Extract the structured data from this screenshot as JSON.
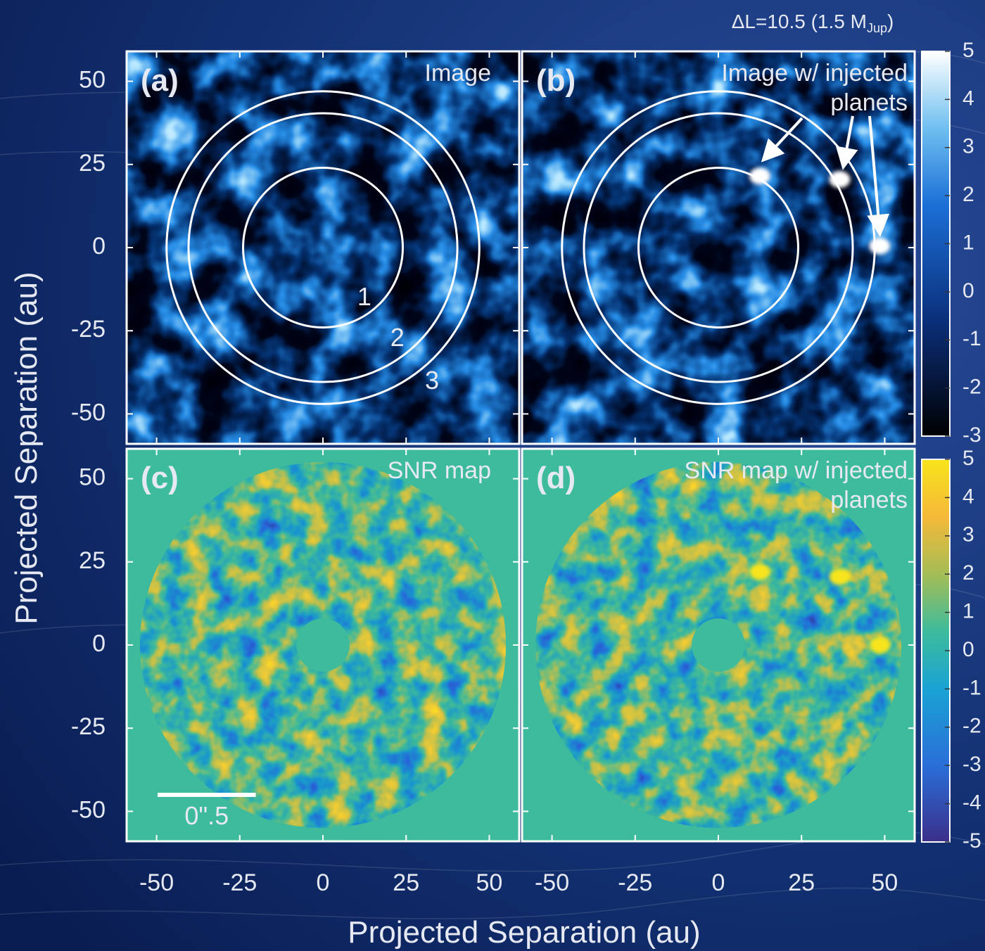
{
  "figure": {
    "annotation": {
      "text": "ΔL=10.5 (1.5 M",
      "sub": "Jup",
      "close": ")"
    },
    "xlabel": "Projected Separation (au)",
    "ylabel": "Projected Separation (au)"
  },
  "chart_data": [
    {
      "type": "image",
      "label": "(a)",
      "title": [
        "Image"
      ],
      "colormap": "blues",
      "xlim": [
        -59,
        59
      ],
      "ylim": [
        -59,
        59
      ],
      "xticks": [
        -50,
        -25,
        0,
        25,
        50
      ],
      "yticks": [
        -50,
        -25,
        0,
        25,
        50
      ],
      "xtick_labels": false,
      "ytick_labels": true,
      "rings": [
        {
          "radius": 24,
          "label": "1"
        },
        {
          "radius": 40.4,
          "label": "2"
        },
        {
          "radius": 47,
          "label": "3"
        }
      ]
    },
    {
      "type": "image",
      "label": "(b)",
      "title": [
        "Image w/ injected",
        "planets"
      ],
      "colormap": "blues",
      "xlim": [
        -59,
        59
      ],
      "ylim": [
        -59,
        59
      ],
      "xticks": [
        -50,
        -25,
        0,
        25,
        50
      ],
      "yticks": [
        -50,
        -25,
        0,
        25,
        50
      ],
      "xtick_labels": false,
      "ytick_labels": false,
      "rings": [
        {
          "radius": 24
        },
        {
          "radius": 40.4
        },
        {
          "radius": 47
        }
      ],
      "planets": [
        {
          "x": 12.5,
          "y": 21.5
        },
        {
          "x": 36.5,
          "y": 20.5
        },
        {
          "x": 48.5,
          "y": 0.5
        }
      ],
      "colorbar": {
        "lim": [
          -3,
          5
        ],
        "ticks": [
          -3,
          -2,
          -1,
          0,
          1,
          2,
          3,
          4,
          5
        ]
      }
    },
    {
      "type": "image",
      "label": "(c)",
      "title": [
        "SNR map"
      ],
      "colormap": "parula",
      "xlim": [
        -59,
        59
      ],
      "ylim": [
        -59,
        59
      ],
      "xticks": [
        -50,
        -25,
        0,
        25,
        50
      ],
      "yticks": [
        -50,
        -25,
        0,
        25,
        50
      ],
      "xtick_labels": true,
      "ytick_labels": true,
      "field_radius": 55,
      "mask_radius": 8,
      "scale_bar": {
        "length": 29.5,
        "label": "0\".5"
      }
    },
    {
      "type": "image",
      "label": "(d)",
      "title": [
        "SNR map w/ injected",
        "planets"
      ],
      "colormap": "parula",
      "xlim": [
        -59,
        59
      ],
      "ylim": [
        -59,
        59
      ],
      "xticks": [
        -50,
        -25,
        0,
        25,
        50
      ],
      "yticks": [
        -50,
        -25,
        0,
        25,
        50
      ],
      "xtick_labels": true,
      "ytick_labels": false,
      "field_radius": 55,
      "mask_radius": 8,
      "planets": [
        {
          "x": 12.5,
          "y": 22
        },
        {
          "x": 36.5,
          "y": 20.5
        },
        {
          "x": 48.5,
          "y": 0
        }
      ],
      "colorbar": {
        "lim": [
          -5,
          5
        ],
        "ticks": [
          -5,
          -4,
          -3,
          -2,
          -1,
          0,
          1,
          2,
          3,
          4,
          5
        ]
      }
    }
  ]
}
